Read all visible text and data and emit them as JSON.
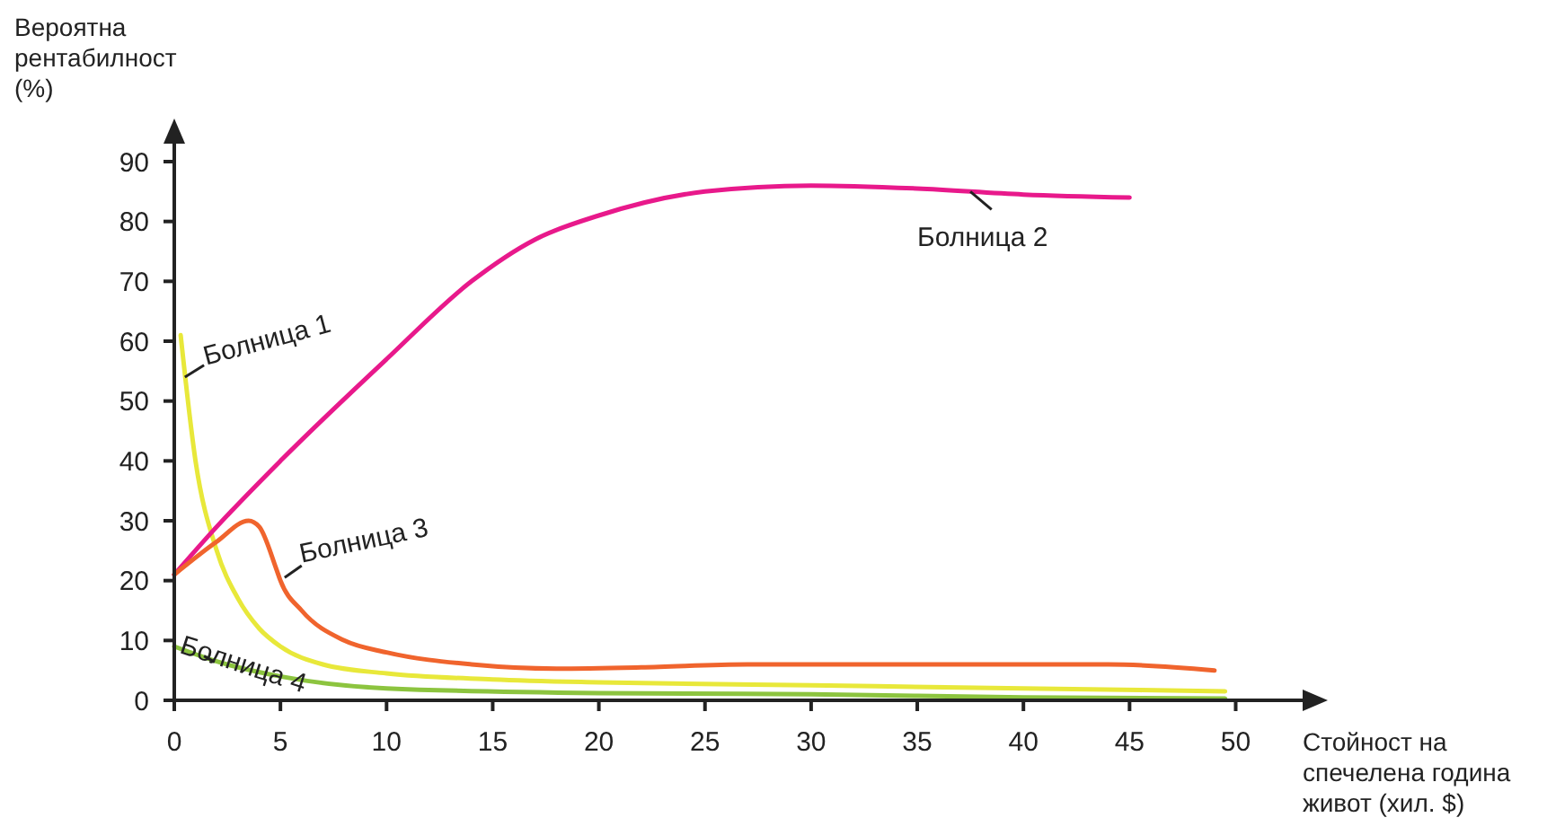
{
  "chart_data": {
    "type": "line",
    "xlabel": "Стойност на\nспечелена година\nживот (хил. $)",
    "ylabel": "Вероятна\nрентабилност\n(%)",
    "xlim": [
      0,
      54
    ],
    "ylim": [
      0,
      96
    ],
    "xticks": [
      0,
      5,
      10,
      15,
      20,
      25,
      30,
      35,
      40,
      45,
      50
    ],
    "yticks": [
      0,
      10,
      20,
      30,
      40,
      50,
      60,
      70,
      80,
      90
    ],
    "grid": false,
    "legend": false,
    "marker": "none",
    "line_style": "solid",
    "series": [
      {
        "name": "Болница 1",
        "color": "#e8e83a",
        "x": [
          0.3,
          1,
          2,
          3,
          4,
          5,
          7,
          10,
          15,
          20,
          30,
          40,
          49.5
        ],
        "values": [
          61,
          40,
          25,
          17,
          12,
          9,
          6,
          4.5,
          3.5,
          3,
          2.5,
          2,
          1.5
        ]
      },
      {
        "name": "Болница 2",
        "color": "#e8198b",
        "x": [
          0,
          2,
          5,
          10,
          14,
          17,
          20,
          25,
          30,
          35,
          40,
          45
        ],
        "values": [
          21,
          29,
          40,
          57,
          70,
          77,
          81,
          85,
          86,
          85.5,
          84.5,
          84
        ]
      },
      {
        "name": "Болница 3",
        "color": "#f0642d",
        "x": [
          0,
          2,
          3.5,
          4,
          4.8,
          5,
          6,
          8,
          10,
          14,
          18,
          22,
          27,
          35,
          44,
          49
        ],
        "values": [
          21,
          26.5,
          30,
          29,
          22,
          20,
          15,
          10,
          8,
          6,
          5.3,
          5.5,
          6,
          6,
          6,
          5
        ]
      },
      {
        "name": "Болница 4",
        "color": "#8cc43f",
        "x": [
          0,
          2,
          5,
          10,
          20,
          30,
          40,
          49.5
        ],
        "values": [
          9,
          6.5,
          4,
          2,
          1.2,
          1,
          0.5,
          0.3
        ]
      }
    ]
  }
}
